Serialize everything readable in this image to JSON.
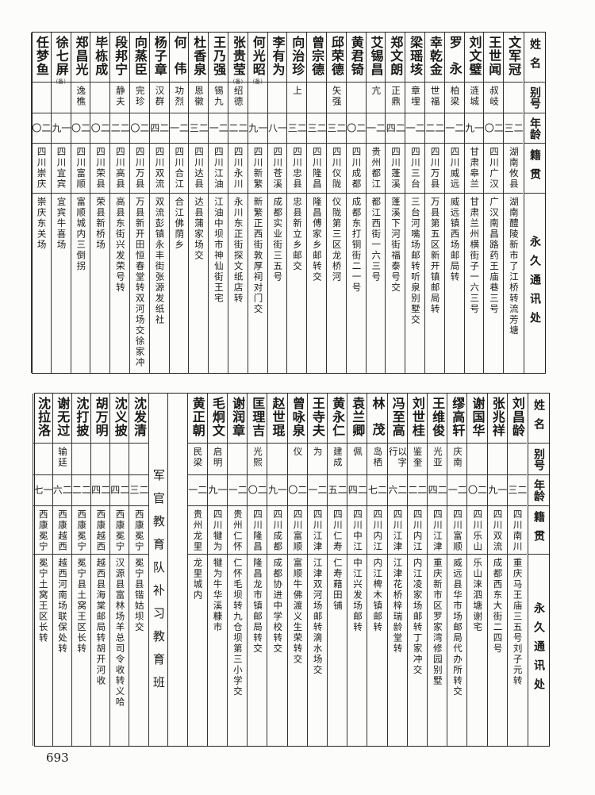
{
  "header": {
    "name": "姓名",
    "alias": "别号",
    "age": "年龄",
    "origin": "籍贯",
    "address": "永久通讯处"
  },
  "top_rows": [
    {
      "name": "文军冠",
      "note": "",
      "alias": "",
      "age": "二三",
      "origin": "湖南攸县",
      "address": "湖南醴陵新市了江桥转流芳塘"
    },
    {
      "name": "王世闻",
      "note": "",
      "alias": "叔岐",
      "age": "二〇",
      "origin": "四川广汉",
      "address": "广汉南昌路药王庙巷三号"
    },
    {
      "name": "刘文璧",
      "note": "",
      "alias": "涟城",
      "age": "一九",
      "origin": "甘肃皋兰",
      "address": "甘肃兰州横街子一六三号"
    },
    {
      "name": "罗永",
      "note": "",
      "alias": "柏梁",
      "age": "二一",
      "origin": "四川威远",
      "address": "威远镇西场邮局转"
    },
    {
      "name": "幸乾金",
      "note": "",
      "alias": "世福",
      "age": "二二",
      "origin": "四川万县",
      "address": "万县第五区新开镇邮局转"
    },
    {
      "name": "梁瑶垓",
      "note": "",
      "alias": "章埋",
      "age": "二一",
      "origin": "四川三台",
      "address": "三台河嘴场邮转听泉别墅交"
    },
    {
      "name": "郑文朗",
      "note": "",
      "alias": "正鼎",
      "age": "二四",
      "origin": "四川蓬溪",
      "address": "蓬溪下河街福泰号交"
    },
    {
      "name": "艾锡昌",
      "note": "",
      "alias": "亢",
      "age": "二一",
      "origin": "贵州都江",
      "address": "都江西街一六三号"
    },
    {
      "name": "黄君锜",
      "note": "",
      "alias": "",
      "age": "二〇",
      "origin": "四川成都",
      "address": "成都东打铜街二一号"
    },
    {
      "name": "邱荣德",
      "note": "",
      "alias": "矢强",
      "age": "二三",
      "origin": "四川仪陇",
      "address": "仪陇第三区龙桥河"
    },
    {
      "name": "曾宗德",
      "note": "",
      "alias": "",
      "age": "二三",
      "origin": "四川隆昌",
      "address": "隆昌傅家乡邮转交"
    },
    {
      "name": "向治珍",
      "note": "",
      "alias": "上",
      "age": "二三",
      "origin": "四川忠县",
      "address": "忠县新立乡邮交"
    },
    {
      "name": "李有为",
      "note": "",
      "alias": "",
      "age": "一八",
      "origin": "四川苍溪",
      "address": "成都实业街三五号"
    },
    {
      "name": "何光昭",
      "note": "(备)",
      "alias": "",
      "age": "一九",
      "origin": "四川新繁",
      "address": "新繁正西街敦厚祠对门交"
    },
    {
      "name": "张贵莹",
      "note": "(备)",
      "alias": "绍德",
      "age": "二二",
      "origin": "四川永川",
      "address": "永川东正街探文纸店转"
    },
    {
      "name": "王乃强",
      "note": "",
      "alias": "锡九",
      "age": "二一",
      "origin": "四川江油",
      "address": "江油中坝市神仙街王宅"
    },
    {
      "name": "杜香泉",
      "note": "",
      "alias": "恩徽",
      "age": "二三",
      "origin": "四川达县",
      "address": "达县蒲家场交"
    },
    {
      "name": "何伟",
      "note": "",
      "alias": "功烈",
      "age": "二一",
      "origin": "四川合江",
      "address": "合江佛荫乡"
    },
    {
      "name": "杨子章",
      "note": "",
      "alias": "汉群",
      "age": "二四",
      "origin": "四川双流",
      "address": "双流彭镇永丰街张源发纸社"
    },
    {
      "name": "向蒸臣",
      "note": "",
      "alias": "完珍",
      "age": "二〇",
      "origin": "四川万县",
      "address": "万县新开田恒春堂转双河场交徐家冲"
    },
    {
      "name": "段邦宁",
      "note": "",
      "alias": "静夫",
      "age": "二二",
      "origin": "四川高县",
      "address": "高县东街兴发荣号转"
    },
    {
      "name": "毕栋成",
      "note": "",
      "alias": "",
      "age": "二〇",
      "origin": "四川荣县",
      "address": "荣县新桥场"
    },
    {
      "name": "郑昌光",
      "note": "",
      "alias": "逸樵",
      "age": "二〇",
      "origin": "四川富顺",
      "address": "富顺城内三倒拐"
    },
    {
      "name": "徐七屏",
      "note": "(备)",
      "alias": "",
      "age": "一九",
      "origin": "四川宜宾",
      "address": "宜宾牛喜场"
    },
    {
      "name": "任梦鱼",
      "note": "",
      "alias": "",
      "age": "二〇",
      "origin": "四川崇庆",
      "address": "崇庆东关场"
    }
  ],
  "bottom_rows": [
    {
      "name": "刘昌龄",
      "note": "",
      "alias": "",
      "age": "二三",
      "origin": "四川南川",
      "address": "重庆马王庙三五号刘子元转"
    },
    {
      "name": "张兆祥",
      "note": "",
      "alias": "",
      "age": "一九",
      "origin": "四川双流",
      "address": "成都西东大街二四号"
    },
    {
      "name": "谢国华",
      "note": "",
      "alias": "",
      "age": "二〇",
      "origin": "四川乐山",
      "address": "乐山涞泗塘谢宅"
    },
    {
      "name": "缪高轩",
      "note": "",
      "alias": "庆南",
      "age": "二一",
      "origin": "四川富顺",
      "address": "威远县华市场邮局代办所转交"
    },
    {
      "name": "王维俊",
      "note": "",
      "alias": "光亚",
      "age": "二四",
      "origin": "四川江津",
      "address": "重庆新市区罗家湾修园别墅"
    },
    {
      "name": "刘世桂",
      "note": "",
      "alias": "鉴奎",
      "age": "二二",
      "origin": "四川内江",
      "address": "内江凌家场邮转丁家冲交"
    },
    {
      "name": "冯至高",
      "note": "",
      "alias": "以字行",
      "age": "二六",
      "origin": "四川江津",
      "address": "江津花桥梓瑞龄堂转"
    },
    {
      "name": "林茂",
      "note": "",
      "alias": "岛栖",
      "age": "二七",
      "origin": "四川内江",
      "address": "内江椑木镇邮转"
    },
    {
      "name": "袁兰卿",
      "note": "",
      "alias": "佩",
      "age": "二四",
      "origin": "四川中江",
      "address": "中江兴发场邮转"
    },
    {
      "name": "黄永仁",
      "note": "",
      "alias": "建成",
      "age": "二五",
      "origin": "四川仁寿",
      "address": "仁寿藉田铺"
    },
    {
      "name": "王寺夫",
      "note": "",
      "alias": "为",
      "age": "二一",
      "origin": "四川江津",
      "address": "江津双河场邮转滴水场交"
    },
    {
      "name": "曾咏泉",
      "note": "",
      "alias": "仪",
      "age": "二〇",
      "origin": "四川富顺",
      "address": "富顺牛佛渡义生荣转交"
    },
    {
      "name": "赵世琨",
      "note": "",
      "alias": "",
      "age": "一九",
      "origin": "四川成都",
      "address": "成都协进中学校转交"
    },
    {
      "name": "匡理吉",
      "note": "",
      "alias": "光熙",
      "age": "二〇",
      "origin": "四川隆昌",
      "address": "隆昌龙市镇邮局转交"
    },
    {
      "name": "谢润章",
      "note": "",
      "alias": "",
      "age": "二一",
      "origin": "贵州仁怀",
      "address": "仁怀毛坝转九仓坝第三小学交"
    },
    {
      "name": "毛炯文",
      "note": "",
      "alias": "启明",
      "age": "一九",
      "origin": "四川犍为",
      "address": "犍为牛华溪糠市"
    },
    {
      "name": "黄正朝",
      "note": "",
      "alias": "民梁",
      "age": "二一",
      "origin": "贵州龙里",
      "address": "龙里城内"
    }
  ],
  "section_label": "军官教育队补习教育班",
  "section_rows": [
    {
      "name": "沈发清",
      "note": "",
      "alias": "",
      "age": "二三",
      "origin": "西康冕宁",
      "address": "冕宁县锴姑坝交"
    },
    {
      "name": "沈义披",
      "note": "",
      "alias": "",
      "age": "二四",
      "origin": "西康冕宁",
      "address": "汉源县富林场羊总司令收转义哈"
    },
    {
      "name": "胡万明",
      "note": "",
      "alias": "",
      "age": "二四",
      "origin": "西康越西",
      "address": "越西县海棠邮局转胡开河收"
    },
    {
      "name": "沈打披",
      "note": "",
      "alias": "",
      "age": "二二",
      "origin": "西康冕宁",
      "address": "冕宁县土窝王区长转"
    },
    {
      "name": "谢无过",
      "note": "",
      "alias": "输廷",
      "age": "二六",
      "origin": "西康越西",
      "address": "越西河南场联保处转"
    },
    {
      "name": "沈拉洛",
      "note": "",
      "alias": "",
      "age": "一七",
      "origin": "西康冕宁",
      "address": "冕宁土窝王区长转"
    }
  ],
  "page_number": "693"
}
